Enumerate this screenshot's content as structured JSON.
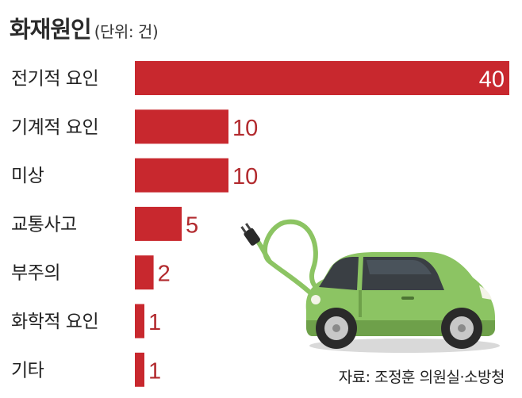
{
  "header": {
    "title": "화재원인",
    "unit": "(단위: 건)"
  },
  "source": "자료: 조정훈 의원실·소방청",
  "colors": {
    "bar": "#c8282e",
    "value_outside": "#b22a2e",
    "value_inside": "#ffffff",
    "car_body": "#8cc463",
    "car_body_dark": "#6ea04a"
  },
  "illustration": {
    "icon": "electric-car-with-plug-icon"
  },
  "chart_data": {
    "type": "bar",
    "orientation": "horizontal",
    "title": "화재원인",
    "unit": "(단위: 건)",
    "categories": [
      "전기적 요인",
      "기계적 요인",
      "미상",
      "교통사고",
      "부주의",
      "화학적 요인",
      "기타"
    ],
    "values": [
      40,
      10,
      10,
      5,
      2,
      1,
      1
    ],
    "xlim": [
      0,
      40
    ],
    "grid": false,
    "legend": "none"
  }
}
